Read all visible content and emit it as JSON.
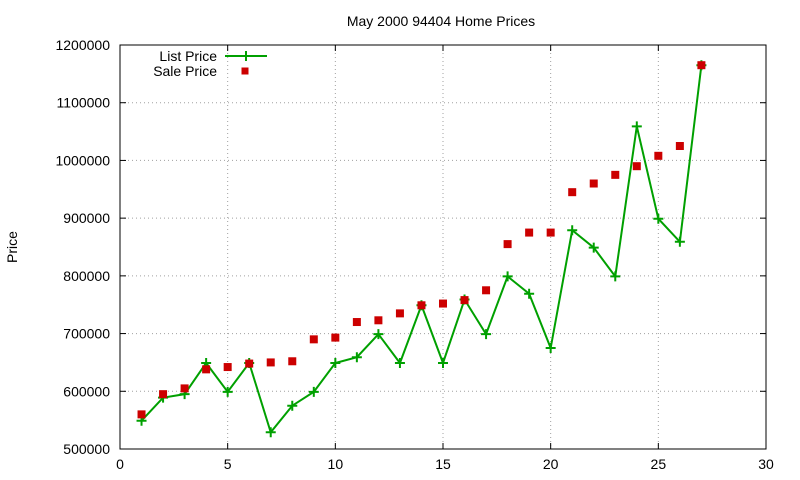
{
  "chart_data": {
    "type": "scatter",
    "title": "May 2000 94404 Home Prices",
    "xlabel": "",
    "ylabel": "Price",
    "xlim": [
      0,
      30
    ],
    "ylim": [
      500000,
      1200000
    ],
    "x_ticks": [
      0,
      5,
      10,
      15,
      20,
      25,
      30
    ],
    "y_ticks": [
      500000,
      600000,
      700000,
      800000,
      900000,
      1000000,
      1100000,
      1200000
    ],
    "grid": true,
    "legend_position": "top-left",
    "series": [
      {
        "name": "List Price",
        "style": "line-with-plus-markers",
        "color": "#00a000",
        "points": [
          [
            1,
            549000
          ],
          [
            2,
            589000
          ],
          [
            3,
            595000
          ],
          [
            4,
            649000
          ],
          [
            5,
            599000
          ],
          [
            6,
            649000
          ],
          [
            7,
            529000
          ],
          [
            8,
            575000
          ],
          [
            9,
            599000
          ],
          [
            10,
            649000
          ],
          [
            11,
            659000
          ],
          [
            12,
            699000
          ],
          [
            13,
            649000
          ],
          [
            14,
            749000
          ],
          [
            15,
            649000
          ],
          [
            16,
            759000
          ],
          [
            17,
            699000
          ],
          [
            18,
            799000
          ],
          [
            19,
            769000
          ],
          [
            20,
            675000
          ],
          [
            21,
            879000
          ],
          [
            22,
            849000
          ],
          [
            23,
            799000
          ],
          [
            24,
            1059000
          ],
          [
            25,
            899000
          ],
          [
            26,
            859000
          ],
          [
            27,
            1165000
          ]
        ]
      },
      {
        "name": "Sale Price",
        "style": "square-markers",
        "color": "#cc0000",
        "points": [
          [
            1,
            560000
          ],
          [
            2,
            595000
          ],
          [
            3,
            605000
          ],
          [
            4,
            638000
          ],
          [
            5,
            642000
          ],
          [
            6,
            648000
          ],
          [
            7,
            650000
          ],
          [
            8,
            652000
          ],
          [
            9,
            690000
          ],
          [
            10,
            693000
          ],
          [
            11,
            720000
          ],
          [
            12,
            723000
          ],
          [
            13,
            735000
          ],
          [
            14,
            749000
          ],
          [
            15,
            752000
          ],
          [
            16,
            758000
          ],
          [
            17,
            775000
          ],
          [
            18,
            855000
          ],
          [
            19,
            875000
          ],
          [
            20,
            875000
          ],
          [
            21,
            945000
          ],
          [
            22,
            960000
          ],
          [
            23,
            975000
          ],
          [
            24,
            990000
          ],
          [
            25,
            1008000
          ],
          [
            26,
            1025000
          ],
          [
            27,
            1165000
          ]
        ]
      }
    ]
  }
}
